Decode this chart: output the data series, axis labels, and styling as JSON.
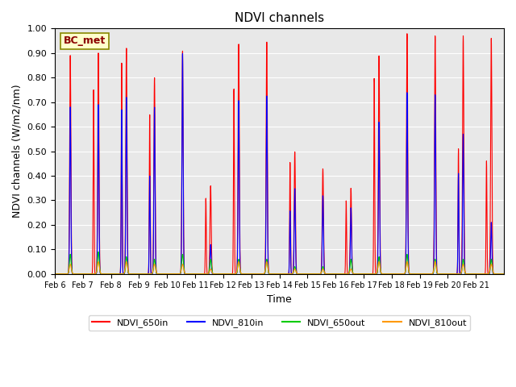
{
  "title": "NDVI channels",
  "xlabel": "Time",
  "ylabel": "NDVI channels (W/m2/nm)",
  "ylim": [
    0.0,
    1.0
  ],
  "yticks": [
    0.0,
    0.1,
    0.2,
    0.3,
    0.4,
    0.5,
    0.6,
    0.7,
    0.8,
    0.9,
    1.0
  ],
  "bg_color": "#e8e8e8",
  "annotation_text": "BC_met",
  "annotation_color": "#8B0000",
  "annotation_bg": "#ffffcc",
  "colors": {
    "NDVI_650in": "#ff0000",
    "NDVI_810in": "#0000ff",
    "NDVI_650out": "#00cc00",
    "NDVI_810out": "#ff9900"
  },
  "x_tick_labels": [
    "Feb 6",
    "Feb 7",
    "Feb 8",
    "Feb 9",
    "Feb 10",
    "Feb 11",
    "Feb 12",
    "Feb 13",
    "Feb 14",
    "Feb 15",
    "Feb 16",
    "Feb 17",
    "Feb 18",
    "Feb 19",
    "Feb 20",
    "Feb 21"
  ],
  "num_days": 16,
  "day_peaks": {
    "NDVI_650in": [
      0.89,
      0.9,
      0.92,
      0.8,
      0.91,
      0.36,
      0.94,
      0.95,
      0.5,
      0.43,
      0.35,
      0.89,
      0.98,
      0.97,
      0.97,
      0.96
    ],
    "NDVI_650in_sec": [
      null,
      0.75,
      0.86,
      0.65,
      null,
      0.31,
      0.76,
      null,
      0.46,
      null,
      0.3,
      0.8,
      null,
      null,
      0.51,
      0.46
    ],
    "NDVI_810in": [
      0.68,
      0.69,
      0.72,
      0.68,
      0.9,
      0.12,
      0.71,
      0.73,
      0.35,
      0.32,
      0.27,
      0.62,
      0.74,
      0.73,
      0.57,
      0.21
    ],
    "NDVI_810in_sec": [
      null,
      null,
      0.67,
      0.4,
      null,
      null,
      null,
      null,
      0.26,
      null,
      null,
      null,
      null,
      null,
      0.41,
      null
    ],
    "NDVI_650out": [
      0.08,
      0.09,
      0.07,
      0.06,
      0.08,
      0.06,
      0.06,
      0.06,
      0.03,
      0.03,
      0.06,
      0.07,
      0.08,
      0.06,
      0.06,
      0.06
    ],
    "NDVI_810out": [
      0.04,
      0.05,
      0.05,
      0.04,
      0.04,
      0.02,
      0.05,
      0.05,
      0.02,
      0.02,
      0.02,
      0.05,
      0.05,
      0.05,
      0.04,
      0.04
    ]
  }
}
